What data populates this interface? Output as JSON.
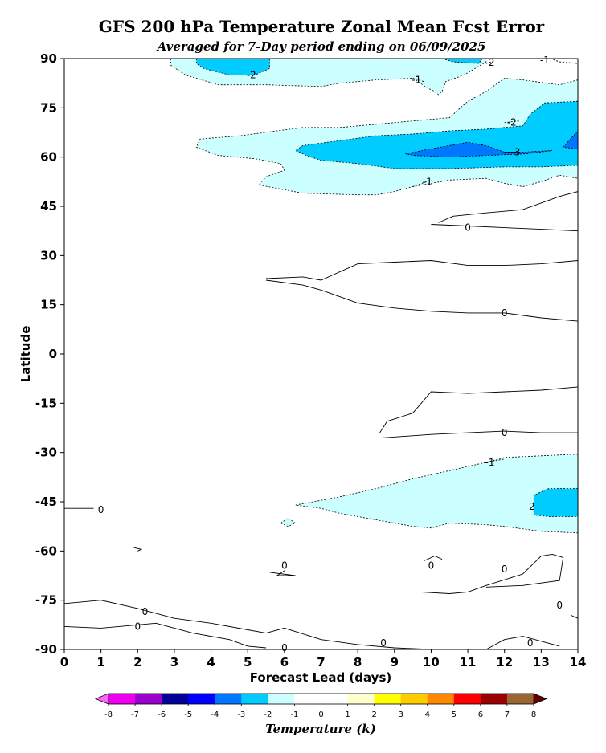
{
  "chart_data": {
    "type": "contour",
    "title": "GFS 200 hPa Temperature Zonal Mean Fcst Error",
    "subtitle": "Averaged for 7-Day period ending on 06/09/2025",
    "xlabel": "Forecast Lead (days)",
    "ylabel": "Latitude",
    "xlim": [
      0,
      14
    ],
    "ylim": [
      -90,
      90
    ],
    "xticks": [
      "0",
      "1",
      "2",
      "3",
      "4",
      "5",
      "6",
      "7",
      "8",
      "9",
      "10",
      "11",
      "12",
      "13",
      "14"
    ],
    "yticks": [
      "90",
      "75",
      "60",
      "45",
      "30",
      "15",
      "0",
      "-15",
      "-30",
      "-45",
      "-60",
      "-75",
      "-90"
    ],
    "colorbar": {
      "label": "Temperature (k)",
      "ticks": [
        "-8",
        "-7",
        "-6",
        "-5",
        "-4",
        "-3",
        "-2",
        "-1",
        "0",
        "1",
        "2",
        "3",
        "4",
        "5",
        "6",
        "7",
        "8"
      ],
      "colors": [
        "#ee00ee",
        "#9900cc",
        "#000099",
        "#0000ff",
        "#0077ff",
        "#00ccff",
        "#ccffff",
        "#ffffff",
        "#ffffff",
        "#ffffcc",
        "#ffff00",
        "#ffcc00",
        "#ff8800",
        "#ff0000",
        "#990000",
        "#996633"
      ],
      "under_color": "#ff66ff",
      "over_color": "#660000"
    },
    "regions": [
      {
        "level": "-1",
        "color": "#ccffff",
        "pts": [
          [
            2.9,
            90
          ],
          [
            2.9,
            88
          ],
          [
            3.3,
            85
          ],
          [
            4.2,
            82
          ],
          [
            5.5,
            82
          ],
          [
            7,
            81.5
          ],
          [
            7.5,
            82.5
          ],
          [
            8.5,
            83.5
          ],
          [
            9.5,
            84
          ],
          [
            9.9,
            81
          ],
          [
            10.1,
            80
          ],
          [
            10.2,
            79
          ],
          [
            10.3,
            80
          ],
          [
            10.4,
            83
          ],
          [
            10.9,
            85
          ],
          [
            11.5,
            89
          ],
          [
            11.5,
            90
          ]
        ]
      },
      {
        "level": "-1",
        "color": "#ccffff",
        "pts": [
          [
            14,
            83.5
          ],
          [
            13.5,
            82
          ],
          [
            12.5,
            83.5
          ],
          [
            12,
            84
          ],
          [
            11.5,
            80
          ],
          [
            11,
            77
          ],
          [
            10.8,
            75
          ],
          [
            10.5,
            72
          ],
          [
            9.5,
            71
          ],
          [
            8.5,
            70
          ],
          [
            7.5,
            69
          ],
          [
            6.5,
            69
          ],
          [
            5.8,
            68
          ],
          [
            4.8,
            66.5
          ],
          [
            3.7,
            65.5
          ],
          [
            3.6,
            63
          ],
          [
            4.2,
            60.5
          ],
          [
            5.2,
            59.5
          ],
          [
            5.9,
            58
          ],
          [
            6,
            56
          ],
          [
            5.5,
            54
          ],
          [
            5.3,
            51.5
          ],
          [
            6.5,
            49
          ],
          [
            8,
            48.5
          ],
          [
            8.5,
            48.5
          ],
          [
            9,
            49.5
          ],
          [
            9.5,
            51
          ],
          [
            10.5,
            53
          ],
          [
            11.5,
            53.5
          ],
          [
            12,
            52
          ],
          [
            12.5,
            51
          ],
          [
            13,
            52.5
          ],
          [
            13.5,
            54.5
          ],
          [
            14,
            53.5
          ]
        ]
      },
      {
        "level": "-2",
        "color": "#00ccff",
        "pts": [
          [
            14,
            77
          ],
          [
            13.1,
            76.5
          ],
          [
            12.7,
            73
          ],
          [
            12.5,
            69.5
          ],
          [
            11.5,
            68.5
          ],
          [
            10.5,
            68
          ],
          [
            9.5,
            67
          ],
          [
            8.5,
            66.5
          ],
          [
            7.5,
            65
          ],
          [
            6.5,
            63.5
          ],
          [
            6.3,
            62
          ],
          [
            6.6,
            60.5
          ],
          [
            7,
            59
          ],
          [
            8,
            58
          ],
          [
            9,
            56.5
          ],
          [
            10.5,
            56.5
          ],
          [
            12,
            57
          ],
          [
            13,
            57
          ],
          [
            14,
            57.5
          ]
        ]
      },
      {
        "level": "-2",
        "color": "#00ccff",
        "pts": [
          [
            3.6,
            90
          ],
          [
            3.6,
            88.5
          ],
          [
            3.8,
            87
          ],
          [
            4.5,
            85
          ],
          [
            5.2,
            85
          ],
          [
            5.6,
            87
          ],
          [
            5.6,
            90
          ]
        ]
      },
      {
        "level": "-2",
        "color": "#00ccff",
        "pts": [
          [
            10.3,
            90
          ],
          [
            10.6,
            89
          ],
          [
            11.3,
            88.5
          ],
          [
            11.4,
            90
          ]
        ]
      },
      {
        "level": "-3",
        "color": "#0077ff",
        "pts": [
          [
            9.3,
            61
          ],
          [
            10,
            62.5
          ],
          [
            11,
            64.5
          ],
          [
            11.5,
            63.5
          ],
          [
            12,
            61.5
          ],
          [
            12.5,
            61.5
          ],
          [
            13.3,
            62
          ],
          [
            12.6,
            61
          ],
          [
            11.5,
            60.5
          ],
          [
            10.5,
            60
          ],
          [
            9.5,
            60.5
          ]
        ]
      },
      {
        "level": "-3",
        "color": "#0077ff",
        "pts": [
          [
            13.6,
            63
          ],
          [
            14,
            68
          ],
          [
            14,
            62.5
          ]
        ]
      },
      {
        "level": "-1",
        "color": "#ccffff",
        "pts": [
          [
            14,
            -30.5
          ],
          [
            13,
            -31
          ],
          [
            12,
            -31.5
          ],
          [
            11.5,
            -33
          ],
          [
            10.5,
            -35.5
          ],
          [
            9.5,
            -38
          ],
          [
            8.5,
            -41
          ],
          [
            7.5,
            -43.5
          ],
          [
            6.3,
            -46
          ],
          [
            7,
            -47
          ],
          [
            7.5,
            -48.5
          ],
          [
            8.5,
            -50.5
          ],
          [
            9.5,
            -52.5
          ],
          [
            10,
            -53
          ],
          [
            10.5,
            -51.5
          ],
          [
            11.5,
            -52
          ],
          [
            12,
            -52.5
          ],
          [
            13,
            -54
          ],
          [
            14,
            -54.5
          ]
        ]
      },
      {
        "level": "-2",
        "color": "#00ccff",
        "pts": [
          [
            14,
            -41
          ],
          [
            13.2,
            -41
          ],
          [
            12.8,
            -43
          ],
          [
            12.8,
            -49
          ],
          [
            13.2,
            -49.5
          ],
          [
            14,
            -49.5
          ]
        ]
      },
      {
        "level": "-1",
        "color": "#ccffff",
        "pts": [
          [
            5.9,
            -51.5
          ],
          [
            6.1,
            -50
          ],
          [
            6.3,
            -51.5
          ],
          [
            6.1,
            -52.5
          ]
        ]
      }
    ],
    "contour_lines": [
      {
        "level": "-1",
        "dashed": true,
        "pts": [
          [
            13,
            91
          ],
          [
            13.5,
            89
          ],
          [
            14,
            88.5
          ]
        ]
      },
      {
        "level": "-2",
        "dashed": true,
        "pts": [
          [
            4.7,
            85
          ],
          [
            5.2,
            85
          ]
        ]
      },
      {
        "level": "-2",
        "dashed": true,
        "pts": [
          [
            11.5,
            88.5
          ],
          [
            11.7,
            89.2
          ]
        ]
      },
      {
        "level": "-1",
        "dashed": true,
        "pts": [
          [
            9.5,
            84
          ],
          [
            9.8,
            83
          ]
        ]
      },
      {
        "level": "-1",
        "dashed": true,
        "pts": [
          [
            9.5,
            51
          ],
          [
            10,
            53
          ]
        ]
      },
      {
        "level": "-1",
        "dashed": true,
        "pts": [
          [
            11.5,
            -33
          ],
          [
            12,
            -32
          ]
        ]
      },
      {
        "level": "-2",
        "dashed": true,
        "pts": [
          [
            12,
            70.5
          ],
          [
            12.4,
            71
          ]
        ]
      },
      {
        "level": "-3",
        "dashed": true,
        "pts": [
          [
            12,
            61.5
          ],
          [
            12.4,
            61.5
          ]
        ]
      },
      {
        "level": "0",
        "dashed": false,
        "pts": [
          [
            10,
            39.5
          ],
          [
            11,
            39
          ],
          [
            12,
            38.5
          ],
          [
            13,
            38
          ],
          [
            14,
            37.5
          ]
        ]
      },
      {
        "level": "0",
        "dashed": false,
        "pts": [
          [
            10.2,
            40
          ],
          [
            10.6,
            42
          ],
          [
            11.5,
            43
          ],
          [
            12.5,
            44
          ],
          [
            13.5,
            48
          ],
          [
            14,
            49.5
          ]
        ]
      },
      {
        "level": "0",
        "dashed": false,
        "pts": [
          [
            5.5,
            23
          ],
          [
            6.5,
            23.5
          ],
          [
            7,
            22.5
          ],
          [
            8,
            27.5
          ],
          [
            9,
            28
          ],
          [
            10,
            28.5
          ],
          [
            11,
            27
          ],
          [
            12,
            27
          ],
          [
            13,
            27.5
          ],
          [
            14,
            28.5
          ]
        ]
      },
      {
        "level": "0",
        "dashed": false,
        "pts": [
          [
            5.5,
            22.5
          ],
          [
            6.5,
            21
          ],
          [
            7,
            19.5
          ],
          [
            7.5,
            17.5
          ],
          [
            8,
            15.5
          ],
          [
            9,
            14
          ],
          [
            10,
            13
          ],
          [
            11,
            12.5
          ],
          [
            12,
            12.5
          ],
          [
            13,
            11
          ],
          [
            14,
            10
          ]
        ]
      },
      {
        "level": "0",
        "dashed": false,
        "pts": [
          [
            8.6,
            -24
          ],
          [
            8.8,
            -20.5
          ],
          [
            9.5,
            -18
          ],
          [
            10,
            -11.5
          ],
          [
            11,
            -12
          ],
          [
            12,
            -11.5
          ],
          [
            13,
            -11
          ],
          [
            14,
            -10
          ]
        ]
      },
      {
        "level": "0",
        "dashed": false,
        "pts": [
          [
            8.7,
            -25.5
          ],
          [
            10,
            -24.5
          ],
          [
            11,
            -24
          ],
          [
            12,
            -23.5
          ],
          [
            13,
            -24
          ],
          [
            14,
            -24
          ]
        ]
      },
      {
        "level": "0",
        "dashed": false,
        "pts": [
          [
            0,
            -47
          ],
          [
            0.8,
            -47
          ]
        ]
      },
      {
        "level": "0",
        "dashed": false,
        "pts": [
          [
            2,
            -60
          ],
          [
            2.1,
            -59.5
          ],
          [
            1.9,
            -59
          ]
        ]
      },
      {
        "level": "0",
        "dashed": false,
        "pts": [
          [
            6,
            -66
          ],
          [
            5.8,
            -67.5
          ],
          [
            6.3,
            -67.5
          ],
          [
            5.6,
            -66.5
          ]
        ]
      },
      {
        "level": "0",
        "dashed": false,
        "pts": [
          [
            9.8,
            -63
          ],
          [
            10.1,
            -61.5
          ],
          [
            10.3,
            -62.5
          ]
        ]
      },
      {
        "level": "0",
        "dashed": false,
        "pts": [
          [
            9.7,
            -72.5
          ],
          [
            10.5,
            -73
          ],
          [
            11,
            -72.5
          ],
          [
            11.5,
            -70.5
          ],
          [
            12.5,
            -67
          ],
          [
            13,
            -61.5
          ],
          [
            13.3,
            -61
          ],
          [
            13.6,
            -62
          ],
          [
            13.5,
            -69
          ],
          [
            12.5,
            -70.5
          ],
          [
            11.5,
            -71
          ]
        ]
      },
      {
        "level": "0",
        "dashed": false,
        "pts": [
          [
            0,
            -76
          ],
          [
            1,
            -75
          ],
          [
            2,
            -77.5
          ],
          [
            3,
            -80.5
          ],
          [
            4,
            -82
          ],
          [
            5,
            -84
          ],
          [
            5.5,
            -85
          ],
          [
            6,
            -83.5
          ],
          [
            7,
            -87
          ],
          [
            8,
            -88.5
          ],
          [
            9,
            -89.5
          ],
          [
            10,
            -90
          ]
        ]
      },
      {
        "level": "0",
        "dashed": false,
        "pts": [
          [
            0,
            -83
          ],
          [
            1,
            -83.5
          ],
          [
            2.5,
            -82
          ],
          [
            3.5,
            -85
          ],
          [
            4.5,
            -87
          ],
          [
            5,
            -89
          ],
          [
            5.5,
            -89.5
          ]
        ]
      },
      {
        "level": "0",
        "dashed": false,
        "pts": [
          [
            13.8,
            -79.5
          ],
          [
            14,
            -80.5
          ]
        ]
      },
      {
        "level": "0",
        "dashed": false,
        "pts": [
          [
            11.5,
            -90
          ],
          [
            12,
            -87
          ],
          [
            12.5,
            -86
          ],
          [
            13,
            -87.5
          ],
          [
            13.5,
            -89
          ]
        ]
      }
    ],
    "contour_labels": [
      {
        "text": "-2",
        "x": 5.1,
        "y": 85
      },
      {
        "text": "-2",
        "x": 11.6,
        "y": 88.8
      },
      {
        "text": "-1",
        "x": 13.1,
        "y": 89.5
      },
      {
        "text": "-1",
        "x": 9.6,
        "y": 83.5
      },
      {
        "text": "-2",
        "x": 12.2,
        "y": 70.5
      },
      {
        "text": "-3",
        "x": 12.3,
        "y": 61.5
      },
      {
        "text": "-1",
        "x": 9.9,
        "y": 52.5
      },
      {
        "text": "0",
        "x": 11,
        "y": 38.5
      },
      {
        "text": "0",
        "x": 12,
        "y": 12.5
      },
      {
        "text": "0",
        "x": 12,
        "y": -24
      },
      {
        "text": "-1",
        "x": 11.6,
        "y": -33
      },
      {
        "text": "-2",
        "x": 12.7,
        "y": -46.5
      },
      {
        "text": "0",
        "x": 1,
        "y": -47.5
      },
      {
        "text": "0",
        "x": 6,
        "y": -64.5
      },
      {
        "text": "0",
        "x": 10,
        "y": -64.5
      },
      {
        "text": "0",
        "x": 12,
        "y": -65.5
      },
      {
        "text": "0",
        "x": 2.2,
        "y": -78.5
      },
      {
        "text": "0",
        "x": 2,
        "y": -83
      },
      {
        "text": "0",
        "x": 13.5,
        "y": -76.5
      },
      {
        "text": "0",
        "x": 6,
        "y": -89.5
      },
      {
        "text": "0",
        "x": 8.7,
        "y": -88
      },
      {
        "text": "0",
        "x": 12.7,
        "y": -88
      }
    ]
  }
}
